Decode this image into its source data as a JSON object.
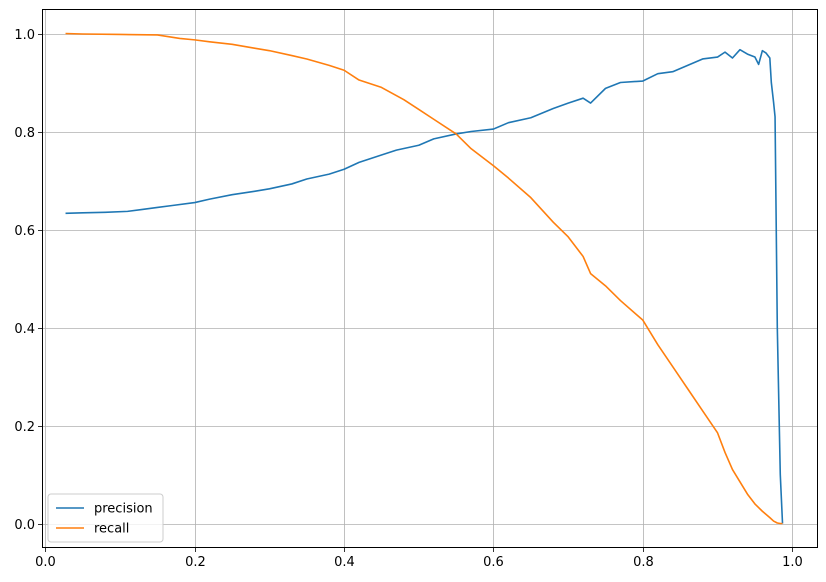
{
  "chart_data": {
    "type": "line",
    "title": "",
    "xlabel": "",
    "ylabel": "",
    "xlim": [
      -0.0045,
      1.0345
    ],
    "ylim": [
      -0.05,
      1.05
    ],
    "x_ticks": [
      0.0,
      0.2,
      0.4,
      0.6,
      0.8,
      1.0
    ],
    "x_tick_labels": [
      "0.0",
      "0.2",
      "0.4",
      "0.6",
      "0.8",
      "1.0"
    ],
    "y_ticks": [
      0.0,
      0.2,
      0.4,
      0.6,
      0.8,
      1.0
    ],
    "y_tick_labels": [
      "0.0",
      "0.2",
      "0.4",
      "0.6",
      "0.8",
      "1.0"
    ],
    "grid": true,
    "legend": {
      "placement": "lower-left",
      "entries": [
        "precision",
        "recall"
      ]
    },
    "series": [
      {
        "name": "precision",
        "color": "#1f77b4",
        "x": [
          0.027,
          0.05,
          0.08,
          0.11,
          0.13,
          0.15,
          0.17,
          0.2,
          0.22,
          0.25,
          0.28,
          0.3,
          0.33,
          0.35,
          0.38,
          0.4,
          0.42,
          0.45,
          0.47,
          0.5,
          0.52,
          0.55,
          0.57,
          0.6,
          0.62,
          0.65,
          0.68,
          0.7,
          0.72,
          0.73,
          0.75,
          0.77,
          0.8,
          0.82,
          0.84,
          0.86,
          0.88,
          0.9,
          0.91,
          0.92,
          0.93,
          0.94,
          0.95,
          0.955,
          0.96,
          0.965,
          0.97,
          0.972,
          0.975,
          0.977,
          0.98,
          0.984,
          0.987
        ],
        "y": [
          0.633,
          0.634,
          0.635,
          0.637,
          0.641,
          0.645,
          0.649,
          0.655,
          0.662,
          0.671,
          0.678,
          0.683,
          0.693,
          0.703,
          0.713,
          0.723,
          0.737,
          0.752,
          0.762,
          0.772,
          0.785,
          0.795,
          0.8,
          0.805,
          0.818,
          0.828,
          0.847,
          0.858,
          0.868,
          0.858,
          0.888,
          0.9,
          0.903,
          0.918,
          0.922,
          0.935,
          0.948,
          0.952,
          0.962,
          0.95,
          0.967,
          0.958,
          0.952,
          0.937,
          0.965,
          0.96,
          0.95,
          0.9,
          0.86,
          0.83,
          0.4,
          0.1,
          0.0
        ]
      },
      {
        "name": "recall",
        "color": "#ff7f0e",
        "x": [
          0.027,
          0.05,
          0.1,
          0.15,
          0.18,
          0.2,
          0.22,
          0.25,
          0.28,
          0.3,
          0.33,
          0.35,
          0.38,
          0.4,
          0.42,
          0.45,
          0.48,
          0.5,
          0.52,
          0.55,
          0.57,
          0.6,
          0.62,
          0.65,
          0.68,
          0.7,
          0.72,
          0.73,
          0.75,
          0.77,
          0.8,
          0.82,
          0.84,
          0.86,
          0.88,
          0.9,
          0.91,
          0.92,
          0.93,
          0.94,
          0.95,
          0.96,
          0.97,
          0.975,
          0.98,
          0.984,
          0.987
        ],
        "y": [
          1.0,
          0.999,
          0.998,
          0.997,
          0.99,
          0.987,
          0.983,
          0.978,
          0.97,
          0.965,
          0.955,
          0.948,
          0.935,
          0.925,
          0.905,
          0.89,
          0.865,
          0.845,
          0.825,
          0.795,
          0.765,
          0.73,
          0.705,
          0.665,
          0.615,
          0.585,
          0.545,
          0.51,
          0.485,
          0.455,
          0.415,
          0.365,
          0.32,
          0.275,
          0.23,
          0.185,
          0.145,
          0.11,
          0.085,
          0.06,
          0.04,
          0.025,
          0.012,
          0.005,
          0.001,
          0.0,
          0.0
        ]
      }
    ]
  }
}
